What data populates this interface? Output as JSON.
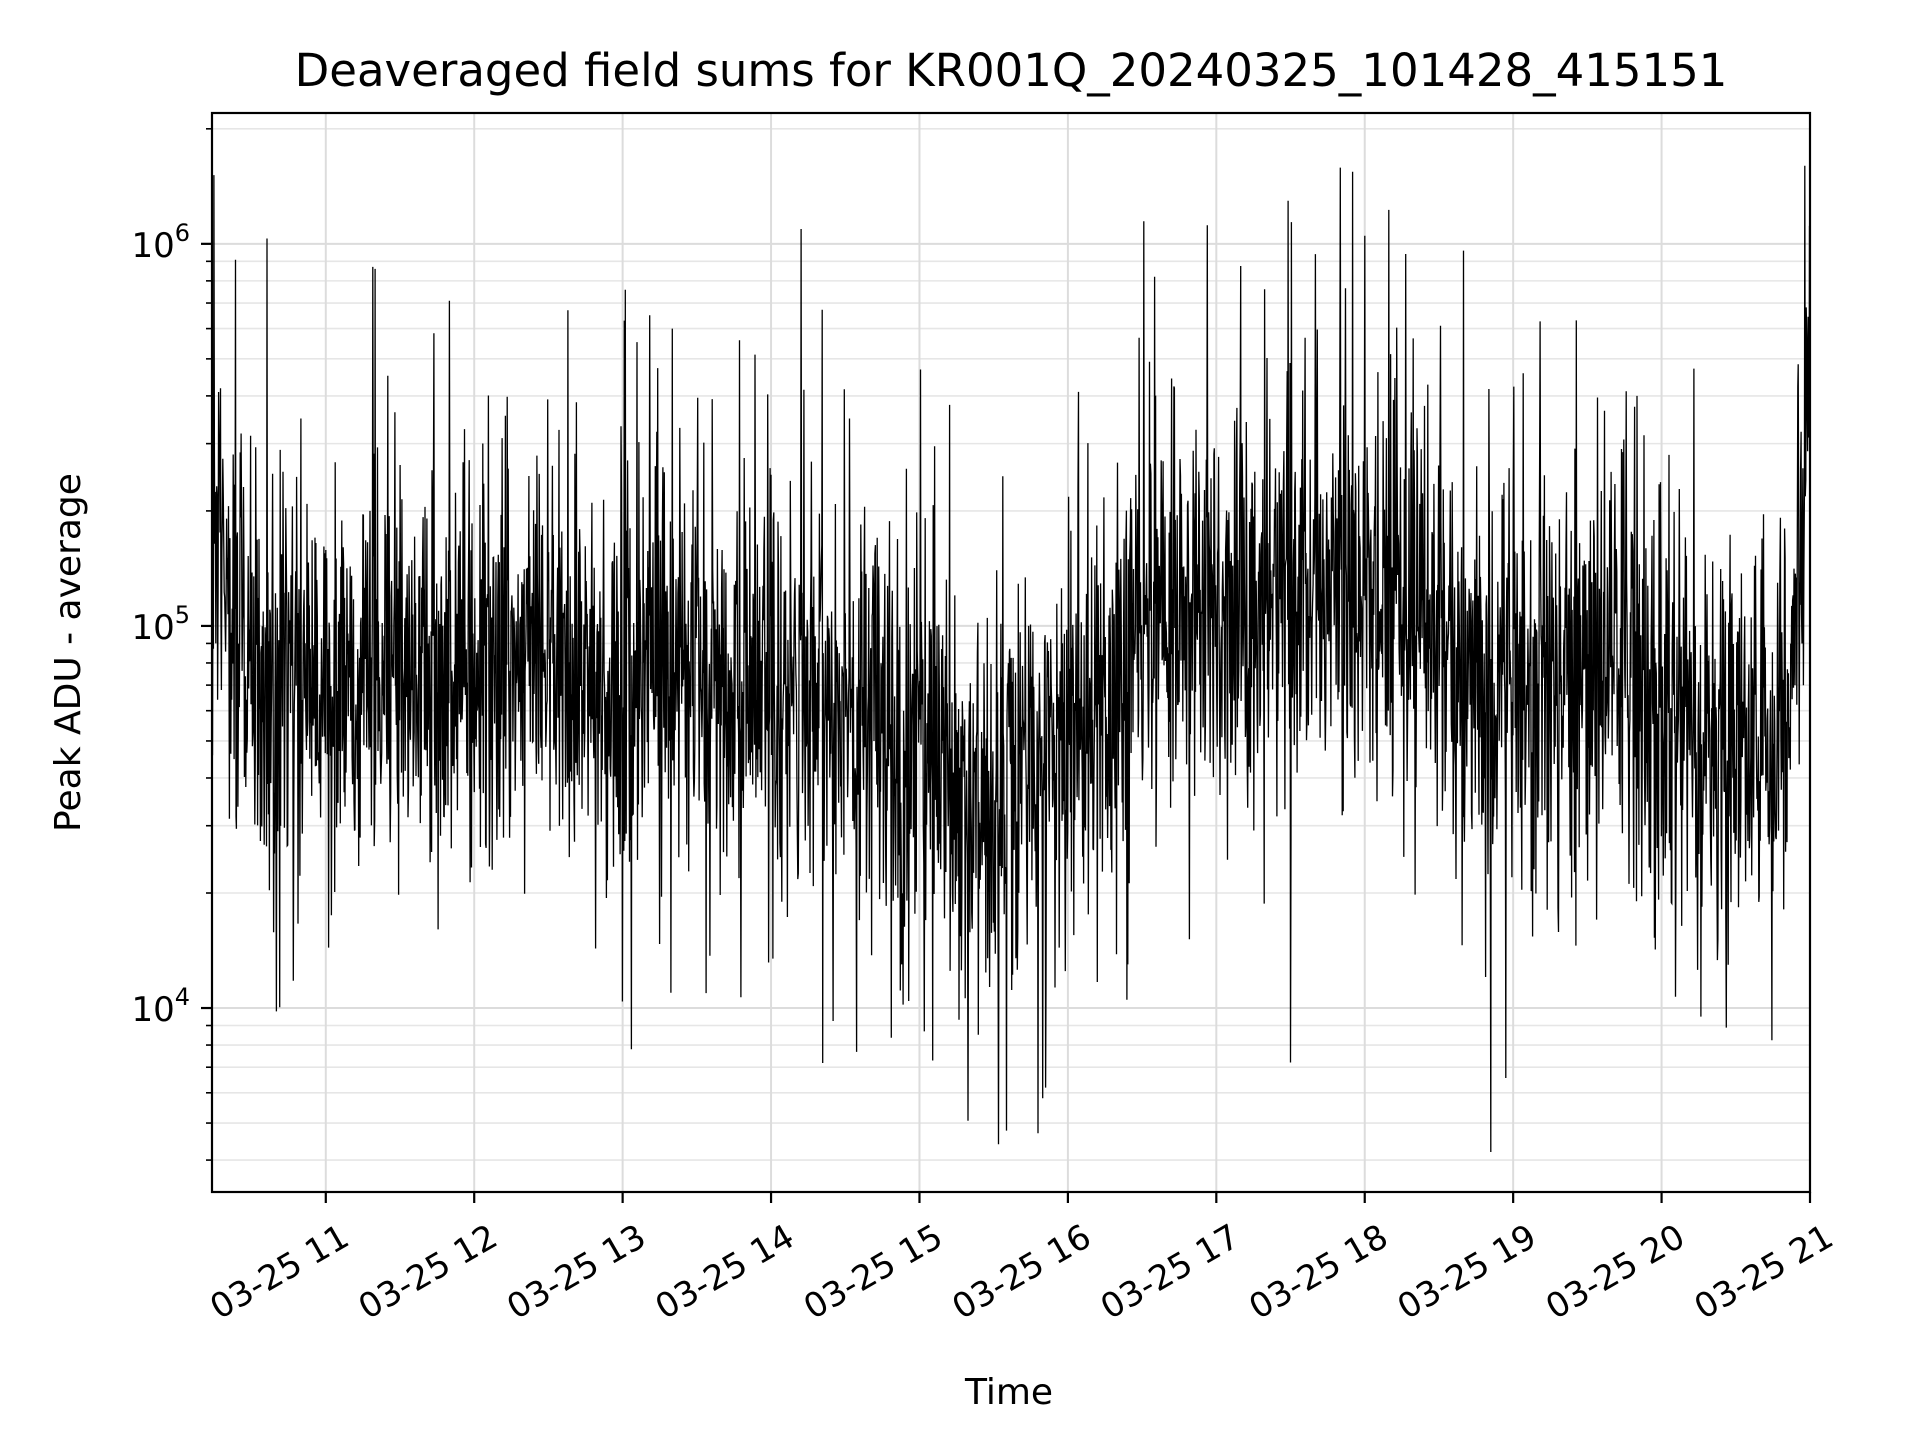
{
  "chart_data": {
    "type": "line",
    "title": "Deaveraged field sums for KR001Q_20240325_101428_415151",
    "xlabel": "Time",
    "ylabel": "Peak ADU - average",
    "yscale": "log",
    "xlim": [
      "2024-03-25T10:14",
      "2024-03-25T21:00"
    ],
    "ylim": [
      3300,
      2200000
    ],
    "x_ticks": [
      {
        "value": "2024-03-25T11:00",
        "label": "03-25 11"
      },
      {
        "value": "2024-03-25T12:00",
        "label": "03-25 12"
      },
      {
        "value": "2024-03-25T13:00",
        "label": "03-25 13"
      },
      {
        "value": "2024-03-25T14:00",
        "label": "03-25 14"
      },
      {
        "value": "2024-03-25T15:00",
        "label": "03-25 15"
      },
      {
        "value": "2024-03-25T16:00",
        "label": "03-25 16"
      },
      {
        "value": "2024-03-25T17:00",
        "label": "03-25 17"
      },
      {
        "value": "2024-03-25T18:00",
        "label": "03-25 18"
      },
      {
        "value": "2024-03-25T19:00",
        "label": "03-25 19"
      },
      {
        "value": "2024-03-25T20:00",
        "label": "03-25 20"
      },
      {
        "value": "2024-03-25T21:00",
        "label": "03-25 21"
      }
    ],
    "y_ticks": [
      {
        "value": 10000,
        "base": "10",
        "exp": "4"
      },
      {
        "value": 100000,
        "base": "10",
        "exp": "5"
      },
      {
        "value": 1000000,
        "base": "10",
        "exp": "6"
      }
    ],
    "grid": true,
    "series_color": "#000000",
    "baseline_profile": [
      {
        "x": "2024-03-25T10:14",
        "y": 200000
      },
      {
        "x": "2024-03-25T10:30",
        "y": 75000
      },
      {
        "x": "2024-03-25T11:00",
        "y": 65000
      },
      {
        "x": "2024-03-25T12:00",
        "y": 75000
      },
      {
        "x": "2024-03-25T13:00",
        "y": 80000
      },
      {
        "x": "2024-03-25T14:00",
        "y": 70000
      },
      {
        "x": "2024-03-25T14:45",
        "y": 55000
      },
      {
        "x": "2024-03-25T15:30",
        "y": 30000
      },
      {
        "x": "2024-03-25T16:00",
        "y": 50000
      },
      {
        "x": "2024-03-25T16:30",
        "y": 90000
      },
      {
        "x": "2024-03-25T17:00",
        "y": 110000
      },
      {
        "x": "2024-03-25T18:00",
        "y": 140000
      },
      {
        "x": "2024-03-25T18:50",
        "y": 60000
      },
      {
        "x": "2024-03-25T19:30",
        "y": 90000
      },
      {
        "x": "2024-03-25T20:30",
        "y": 45000
      },
      {
        "x": "2024-03-25T20:50",
        "y": 50000
      },
      {
        "x": "2024-03-25T21:00",
        "y": 300000
      }
    ],
    "spikes": [
      {
        "x": "2024-03-25T11:19",
        "y": 870000
      },
      {
        "x": "2024-03-25T11:20",
        "y": 860000
      },
      {
        "x": "2024-03-25T11:50",
        "y": 710000
      },
      {
        "x": "2024-03-25T13:11",
        "y": 650000
      },
      {
        "x": "2024-03-25T13:20",
        "y": 600000
      },
      {
        "x": "2024-03-25T16:35",
        "y": 820000
      },
      {
        "x": "2024-03-25T17:40",
        "y": 940000
      },
      {
        "x": "2024-03-25T18:00",
        "y": 1050000
      },
      {
        "x": "2024-03-25T18:40",
        "y": 960000
      },
      {
        "x": "2024-03-25T20:58",
        "y": 1600000
      },
      {
        "x": "2024-03-25T10:40",
        "y": 9800
      },
      {
        "x": "2024-03-25T13:00",
        "y": 10400
      },
      {
        "x": "2024-03-25T15:32",
        "y": 4400
      },
      {
        "x": "2024-03-25T15:48",
        "y": 4700
      },
      {
        "x": "2024-03-25T17:30",
        "y": 7200
      },
      {
        "x": "2024-03-25T18:51",
        "y": 4200
      }
    ]
  }
}
